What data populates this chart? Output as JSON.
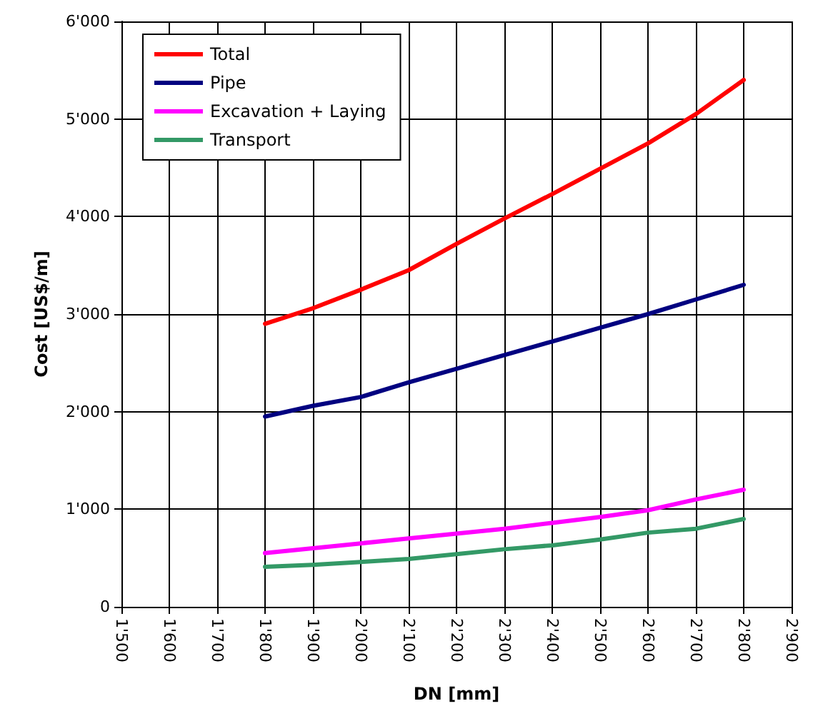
{
  "chart_data": {
    "type": "line",
    "xlabel": "DN [mm]",
    "ylabel": "Cost [US$/m]",
    "x": [
      1800,
      1900,
      2000,
      2100,
      2200,
      2300,
      2400,
      2500,
      2600,
      2700,
      2800
    ],
    "series": [
      {
        "name": "Total",
        "color": "#ff0000",
        "values": [
          2900,
          3060,
          3250,
          3450,
          3720,
          3980,
          4230,
          4490,
          4750,
          5050,
          5400
        ]
      },
      {
        "name": "Pipe",
        "color": "#000080",
        "values": [
          1950,
          2060,
          2150,
          2300,
          2440,
          2580,
          2720,
          2860,
          3000,
          3150,
          3300
        ]
      },
      {
        "name": "Excavation + Laying",
        "color": "#ff00ff",
        "values": [
          550,
          600,
          650,
          700,
          750,
          800,
          860,
          920,
          990,
          1100,
          1200
        ]
      },
      {
        "name": "Transport",
        "color": "#339966",
        "values": [
          410,
          430,
          460,
          490,
          540,
          590,
          630,
          690,
          760,
          800,
          900
        ]
      }
    ],
    "xlim": [
      1500,
      2900
    ],
    "xticks": [
      {
        "value": 1500,
        "label": "1'500"
      },
      {
        "value": 1600,
        "label": "1'600"
      },
      {
        "value": 1700,
        "label": "1'700"
      },
      {
        "value": 1800,
        "label": "1'800"
      },
      {
        "value": 1900,
        "label": "1'900"
      },
      {
        "value": 2000,
        "label": "2'000"
      },
      {
        "value": 2100,
        "label": "2'100"
      },
      {
        "value": 2200,
        "label": "2'200"
      },
      {
        "value": 2300,
        "label": "2'300"
      },
      {
        "value": 2400,
        "label": "2'400"
      },
      {
        "value": 2500,
        "label": "2'500"
      },
      {
        "value": 2600,
        "label": "2'600"
      },
      {
        "value": 2700,
        "label": "2'700"
      },
      {
        "value": 2800,
        "label": "2'800"
      },
      {
        "value": 2900,
        "label": "2'900"
      }
    ],
    "ylim": [
      0,
      6000
    ],
    "yticks": [
      0,
      {
        "value": 1000,
        "label": "1'000"
      },
      {
        "value": 2000,
        "label": "2'000"
      },
      {
        "value": 3000,
        "label": "3'000"
      },
      {
        "value": 4000,
        "label": "4'000"
      },
      {
        "value": 5000,
        "label": "5'000"
      },
      {
        "value": 6000,
        "label": "6'000"
      }
    ],
    "grid": true,
    "legend": "top left",
    "marker": "none",
    "line_style": "solid"
  }
}
